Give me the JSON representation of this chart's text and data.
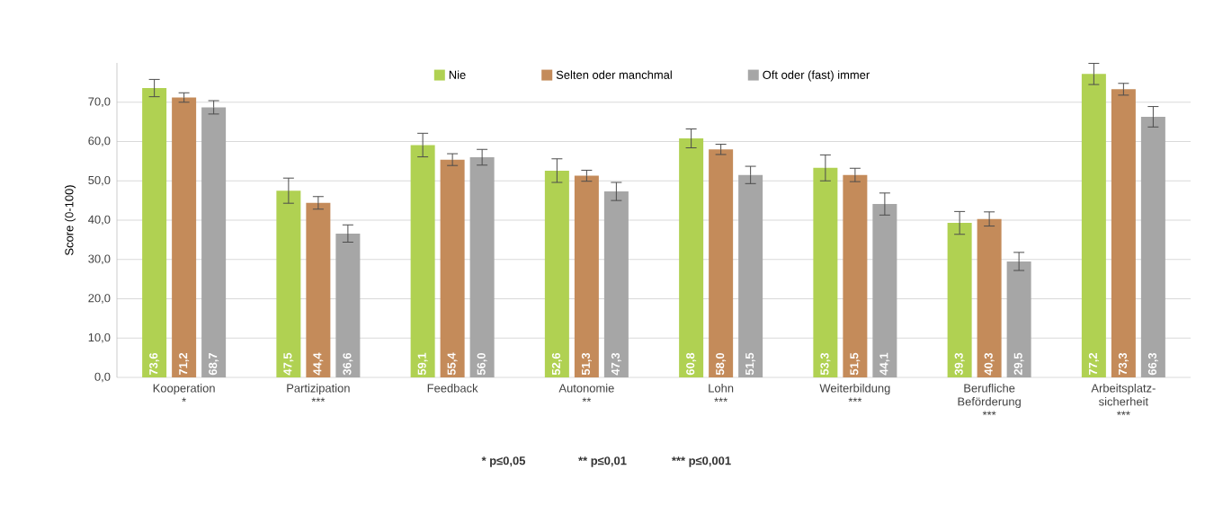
{
  "chart_data": {
    "type": "bar",
    "ylabel": "Score (0-100)",
    "categories": [
      "Kooperation *",
      "Partizipation ***",
      "Feedback",
      "Autonomie **",
      "Lohn ***",
      "Weiterbildung ***",
      "Berufliche Beförderung ***",
      "Arbeitsplatz-sicherheit ***"
    ],
    "series": [
      {
        "name": "Nie",
        "color": "#b0d152",
        "values": [
          73.6,
          47.5,
          59.1,
          52.6,
          60.8,
          53.3,
          39.3,
          77.2
        ],
        "errors": [
          2.2,
          3.2,
          3.0,
          3.0,
          2.4,
          3.3,
          2.9,
          2.7
        ],
        "value_labels": [
          "73,6",
          "47,5",
          "59,1",
          "52,6",
          "60,8",
          "53,3",
          "39,3",
          "77,2"
        ]
      },
      {
        "name": "Selten oder manchmal",
        "color": "#c48b5a",
        "values": [
          71.2,
          44.4,
          55.4,
          51.3,
          58.0,
          51.5,
          40.3,
          73.3
        ],
        "errors": [
          1.2,
          1.6,
          1.5,
          1.4,
          1.3,
          1.7,
          1.8,
          1.5
        ],
        "value_labels": [
          "71,2",
          "44,4",
          "55,4",
          "51,3",
          "58,0",
          "51,5",
          "40,3",
          "73,3"
        ]
      },
      {
        "name": "Oft oder (fast) immer",
        "color": "#a6a6a6",
        "values": [
          68.7,
          36.6,
          56.0,
          47.3,
          51.5,
          44.1,
          29.5,
          66.3
        ],
        "errors": [
          1.7,
          2.2,
          2.0,
          2.3,
          2.2,
          2.8,
          2.3,
          2.6
        ],
        "value_labels": [
          "68,7",
          "36,6",
          "56,0",
          "47,3",
          "51,5",
          "44,1",
          "29,5",
          "66,3"
        ]
      }
    ],
    "ylim": [
      0,
      80
    ],
    "yticks": [
      {
        "value": 0,
        "label": "0,0"
      },
      {
        "value": 10,
        "label": "10,0"
      },
      {
        "value": 20,
        "label": "20,0"
      },
      {
        "value": 30,
        "label": "30,0"
      },
      {
        "value": 40,
        "label": "40,0"
      },
      {
        "value": 50,
        "label": "50,0"
      },
      {
        "value": 60,
        "label": "60,0"
      },
      {
        "value": 70,
        "label": "70,0"
      }
    ],
    "grid": "y",
    "legend": "top",
    "annotations": [
      "* p≤0,05",
      "** p≤0,01",
      "*** p≤0,001"
    ]
  }
}
